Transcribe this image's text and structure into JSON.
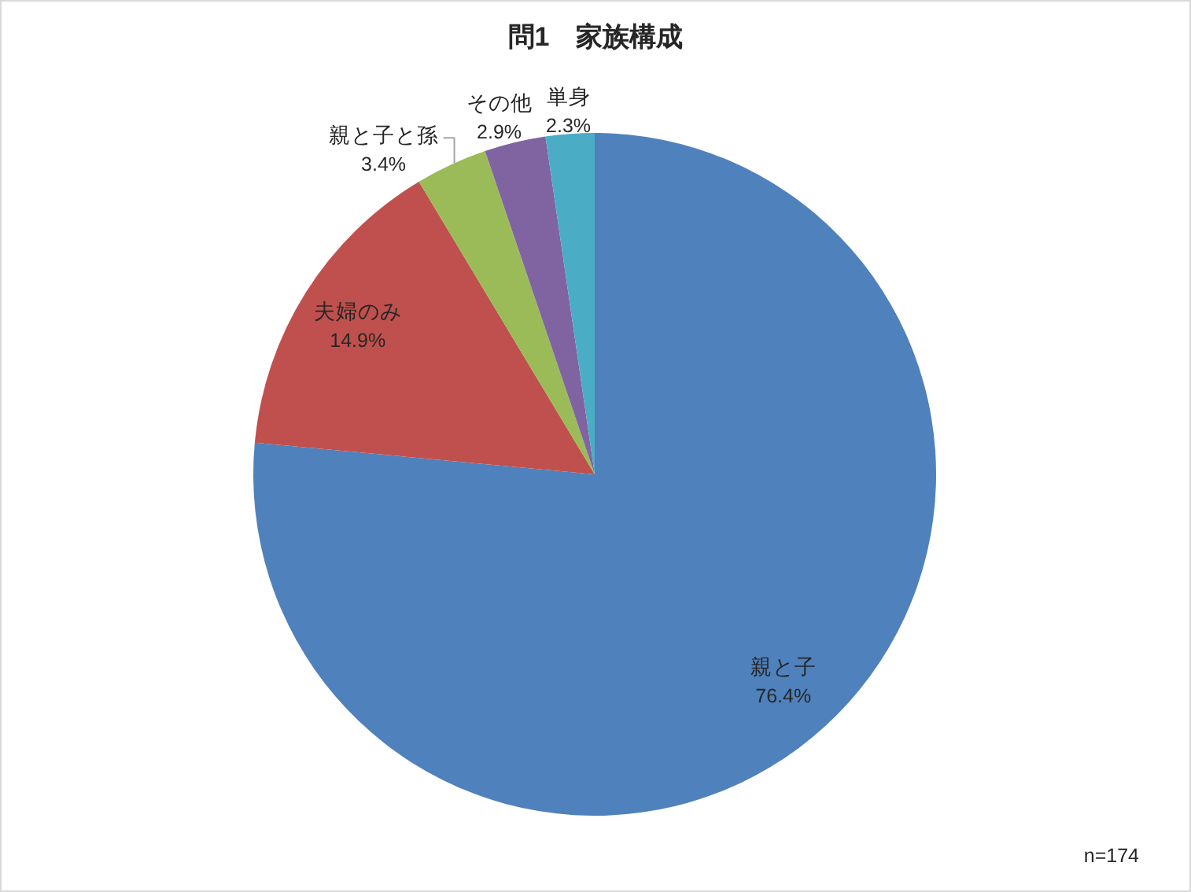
{
  "chart_data": {
    "type": "pie",
    "title": "問1　家族構成",
    "categories": [
      "親と子",
      "夫婦のみ",
      "親と子と孫",
      "その他",
      "単身"
    ],
    "values": [
      76.4,
      14.9,
      3.4,
      2.9,
      2.3
    ],
    "colors": [
      "#4f81bd",
      "#c0504d",
      "#9bbb59",
      "#8064a2",
      "#4bacc6"
    ],
    "value_labels": [
      "76.4%",
      "14.9%",
      "3.4%",
      "2.9%",
      "2.3%"
    ],
    "annotations": [
      "n=174"
    ]
  }
}
